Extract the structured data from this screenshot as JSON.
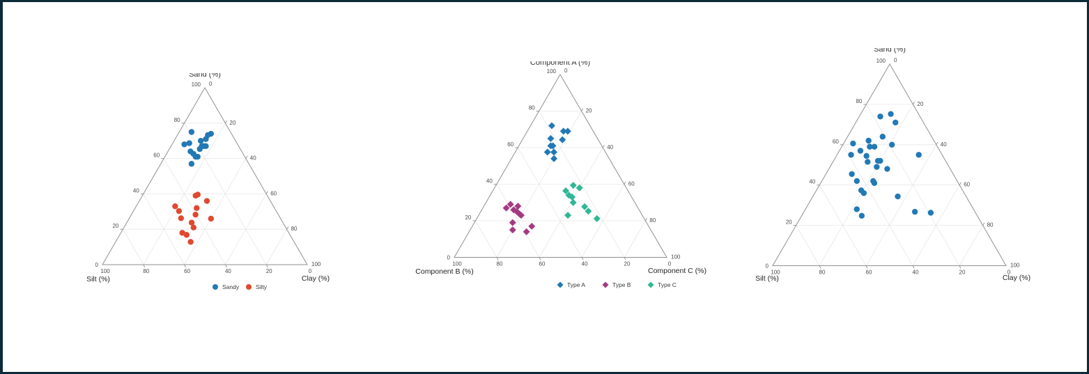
{
  "page": {
    "background": "#ffffff",
    "frame_border_color": "#0d2a39"
  },
  "chart_data": [
    {
      "type": "scatter",
      "subtype": "ternary",
      "title": "Sand (%)",
      "axes": {
        "top_label": "Sand (%)",
        "bottom_left_label": "Silt (%)",
        "bottom_right_label": "Clay (%)"
      },
      "axis_range": [
        0,
        100
      ],
      "tick_values": [
        0,
        20,
        40,
        60,
        80,
        100
      ],
      "grid": true,
      "marker": "circle",
      "legend": {
        "visible": true,
        "position": "bottom-center"
      },
      "point_format": "[top, bottom_left, bottom_right] percent",
      "series": [
        {
          "name": "Sandy",
          "color": "#2279b5",
          "points": [
            [
              75,
              19,
              6
            ],
            [
              74,
              12,
              15
            ],
            [
              74,
              10,
              16
            ],
            [
              70,
              17,
              13
            ],
            [
              71,
              14,
              15
            ],
            [
              68,
              26,
              6
            ],
            [
              68,
              23,
              8
            ],
            [
              67,
              18,
              15
            ],
            [
              67,
              17,
              16
            ],
            [
              67,
              16,
              17
            ],
            [
              66,
              20,
              15
            ],
            [
              64,
              25,
              11
            ],
            [
              62,
              24,
              13
            ],
            [
              61,
              24,
              15
            ],
            [
              61,
              23,
              16
            ],
            [
              57,
              28,
              15
            ]
          ]
        },
        {
          "name": "Silty",
          "color": "#e0492f",
          "points": [
            [
              39,
              35,
              26
            ],
            [
              40,
              34,
              27
            ],
            [
              36,
              31,
              33
            ],
            [
              33,
              48,
              19
            ],
            [
              32,
              38,
              30
            ],
            [
              30,
              47,
              22
            ],
            [
              28,
              40,
              31
            ],
            [
              26,
              48,
              25
            ],
            [
              26,
              34,
              40
            ],
            [
              24,
              45,
              32
            ],
            [
              21,
              45,
              34
            ],
            [
              18,
              52,
              30
            ],
            [
              17,
              51,
              33
            ],
            [
              13,
              51,
              37
            ]
          ]
        }
      ]
    },
    {
      "type": "scatter",
      "subtype": "ternary",
      "title": "Component A (%)",
      "axes": {
        "top_label": "Component A (%)",
        "bottom_left_label": "Component B (%)",
        "bottom_right_label": "Component C (%)"
      },
      "axis_range": [
        0,
        100
      ],
      "tick_values": [
        0,
        20,
        40,
        60,
        80,
        100
      ],
      "grid": true,
      "marker": "diamond",
      "legend": {
        "visible": true,
        "position": "bottom-center"
      },
      "point_format": "[top, bottom_left, bottom_right] percent",
      "series": [
        {
          "name": "Type A",
          "color": "#2279b5",
          "points": [
            [
              72,
              18,
              10
            ],
            [
              69,
              14,
              17
            ],
            [
              69,
              12,
              19
            ],
            [
              65,
              22,
              13
            ],
            [
              65,
              17,
              19
            ],
            [
              61,
              24,
              15
            ],
            [
              61,
              23,
              16
            ],
            [
              57,
              27,
              15
            ],
            [
              57,
              24,
              18
            ],
            [
              54,
              26,
              20
            ]
          ]
        },
        {
          "name": "Type B",
          "color": "#a43a82",
          "points": [
            [
              29,
              59,
              12
            ],
            [
              27,
              62,
              11
            ],
            [
              28,
              56,
              16
            ],
            [
              26,
              59,
              15
            ],
            [
              25,
              58,
              17
            ],
            [
              24,
              58,
              19
            ],
            [
              23,
              57,
              20
            ],
            [
              19,
              63,
              18
            ],
            [
              17,
              55,
              28
            ],
            [
              15,
              65,
              20
            ],
            [
              14,
              59,
              27
            ]
          ]
        },
        {
          "name": "Type C",
          "color": "#30b795",
          "points": [
            [
              39,
              24,
              36
            ],
            [
              38,
              22,
              40
            ],
            [
              36,
              29,
              34
            ],
            [
              34,
              29,
              37
            ],
            [
              33,
              28,
              39
            ],
            [
              30,
              29,
              41
            ],
            [
              28,
              25,
              48
            ],
            [
              25,
              24,
              50
            ],
            [
              23,
              35,
              42
            ],
            [
              21,
              22,
              56
            ]
          ]
        }
      ]
    },
    {
      "type": "scatter",
      "subtype": "ternary",
      "title": "Sand (%)",
      "axes": {
        "top_label": "Sand (%)",
        "bottom_left_label": "Silt (%)",
        "bottom_right_label": "Clay (%)"
      },
      "axis_range": [
        0,
        100
      ],
      "tick_values": [
        0,
        20,
        40,
        60,
        80,
        100
      ],
      "grid": true,
      "marker": "circle",
      "legend": {
        "visible": false,
        "position": "none"
      },
      "point_format": "[top, bottom_left, bottom_right] percent",
      "series": [
        {
          "name": "",
          "color": "#2279b5",
          "points": [
            [
              74,
              17,
              9
            ],
            [
              76,
              12,
              13
            ],
            [
              71,
              12,
              17
            ],
            [
              64,
              21,
              15
            ],
            [
              62,
              28,
              10
            ],
            [
              60,
              35,
              4
            ],
            [
              59,
              29,
              12
            ],
            [
              59,
              27,
              14
            ],
            [
              60,
              19,
              21
            ],
            [
              57,
              34,
              9
            ],
            [
              55,
              39,
              6
            ],
            [
              55,
              33,
              13
            ],
            [
              55,
              10,
              35
            ],
            [
              52,
              34,
              15
            ],
            [
              52,
              29,
              19
            ],
            [
              52,
              28,
              20
            ],
            [
              49,
              31,
              20
            ],
            [
              48,
              27,
              25
            ],
            [
              45,
              43,
              11
            ],
            [
              42,
              43,
              15
            ],
            [
              42,
              36,
              22
            ],
            [
              41,
              36,
              23
            ],
            [
              37,
              43,
              19
            ],
            [
              36,
              43,
              21
            ],
            [
              34,
              29,
              36
            ],
            [
              28,
              50,
              22
            ],
            [
              27,
              26,
              48
            ],
            [
              26,
              19,
              54
            ],
            [
              25,
              50,
              26
            ]
          ]
        }
      ]
    }
  ]
}
